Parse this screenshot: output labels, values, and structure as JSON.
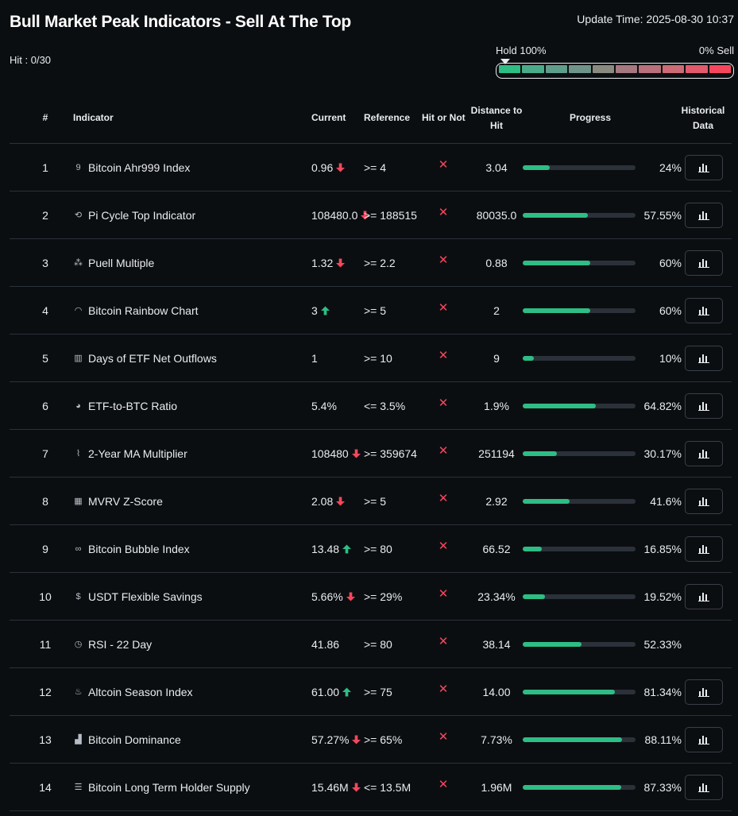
{
  "page": {
    "title": "Bull Market Peak Indicators - Sell At The Top",
    "update_time": "Update Time: 2025-08-30 10:37",
    "hit_count": "Hit : 0/30"
  },
  "gauge": {
    "hold_label": "Hold 100%",
    "sell_label": "0% Sell",
    "segment_colors": [
      "#2ebd85",
      "#4aab8a",
      "#5f9d8a",
      "#6f938a",
      "#8a8a80",
      "#a6787f",
      "#b9707a",
      "#cc6a76",
      "#e05a6c",
      "#f6465d"
    ]
  },
  "columns": {
    "num": "#",
    "indicator": "Indicator",
    "current": "Current",
    "reference": "Reference",
    "hit": "Hit or Not",
    "distance_1": "Distance to",
    "distance_2": "Hit",
    "progress": "Progress",
    "historical_1": "Historical",
    "historical_2": "Data"
  },
  "colors": {
    "up": "#2ebd85",
    "down": "#f6465d",
    "progress": "#2ebd85"
  },
  "rows": [
    {
      "num": "1",
      "name": "Bitcoin Ahr999 Index",
      "icon": "ahr999-icon",
      "icon_glyph": "9",
      "current": "0.96",
      "trend": "down",
      "reference": ">= 4",
      "hit": "✕",
      "distance": "3.04",
      "progress": 0.24,
      "pct": "24%",
      "has_hist": true
    },
    {
      "num": "2",
      "name": "Pi Cycle Top Indicator",
      "icon": "cycle-icon",
      "icon_glyph": "⟲",
      "current": "108480.0",
      "trend": "down",
      "reference": ">= 188515",
      "hit": "✕",
      "distance": "80035.0",
      "progress": 0.5755,
      "pct": "57.55%",
      "has_hist": true
    },
    {
      "num": "3",
      "name": "Puell Multiple",
      "icon": "sparkle-icon",
      "icon_glyph": "⁂",
      "current": "1.32",
      "trend": "down",
      "reference": ">= 2.2",
      "hit": "✕",
      "distance": "0.88",
      "progress": 0.6,
      "pct": "60%",
      "has_hist": true
    },
    {
      "num": "4",
      "name": "Bitcoin Rainbow Chart",
      "icon": "rainbow-icon",
      "icon_glyph": "◠",
      "current": "3",
      "trend": "up",
      "reference": ">= 5",
      "hit": "✕",
      "distance": "2",
      "progress": 0.6,
      "pct": "60%",
      "has_hist": true
    },
    {
      "num": "5",
      "name": "Days of ETF Net Outflows",
      "icon": "bar-chart-icon",
      "icon_glyph": "▥",
      "current": "1",
      "trend": "",
      "reference": ">= 10",
      "hit": "✕",
      "distance": "9",
      "progress": 0.1,
      "pct": "10%",
      "has_hist": true
    },
    {
      "num": "6",
      "name": "ETF-to-BTC Ratio",
      "icon": "pie-chart-icon",
      "icon_glyph": "◕",
      "current": "5.4%",
      "trend": "",
      "reference": "<= 3.5%",
      "hit": "✕",
      "distance": "1.9%",
      "progress": 0.6482,
      "pct": "64.82%",
      "has_hist": true
    },
    {
      "num": "7",
      "name": "2-Year MA Multiplier",
      "icon": "line-chart-icon",
      "icon_glyph": "⌇",
      "current": "108480",
      "trend": "down",
      "reference": ">= 359674",
      "hit": "✕",
      "distance": "251194",
      "progress": 0.3017,
      "pct": "30.17%",
      "has_hist": true
    },
    {
      "num": "8",
      "name": "MVRV Z-Score",
      "icon": "calculator-icon",
      "icon_glyph": "▦",
      "current": "2.08",
      "trend": "down",
      "reference": ">= 5",
      "hit": "✕",
      "distance": "2.92",
      "progress": 0.416,
      "pct": "41.6%",
      "has_hist": true
    },
    {
      "num": "9",
      "name": "Bitcoin Bubble Index",
      "icon": "bubble-icon",
      "icon_glyph": "∞",
      "current": "13.48",
      "trend": "up",
      "reference": ">= 80",
      "hit": "✕",
      "distance": "66.52",
      "progress": 0.1685,
      "pct": "16.85%",
      "has_hist": true
    },
    {
      "num": "10",
      "name": "USDT Flexible Savings",
      "icon": "dollar-icon",
      "icon_glyph": "$",
      "current": "5.66%",
      "trend": "down",
      "reference": ">= 29%",
      "hit": "✕",
      "distance": "23.34%",
      "progress": 0.1952,
      "pct": "19.52%",
      "has_hist": true
    },
    {
      "num": "11",
      "name": "RSI - 22 Day",
      "icon": "clock-icon",
      "icon_glyph": "◷",
      "current": "41.86",
      "trend": "",
      "reference": ">= 80",
      "hit": "✕",
      "distance": "38.14",
      "progress": 0.5233,
      "pct": "52.33%",
      "has_hist": false
    },
    {
      "num": "12",
      "name": "Altcoin Season Index",
      "icon": "fire-icon",
      "icon_glyph": "♨",
      "current": "61.00",
      "trend": "up",
      "reference": ">= 75",
      "hit": "✕",
      "distance": "14.00",
      "progress": 0.8134,
      "pct": "81.34%",
      "has_hist": true
    },
    {
      "num": "13",
      "name": "Bitcoin Dominance",
      "icon": "signal-icon",
      "icon_glyph": "▟",
      "current": "57.27%",
      "trend": "down",
      "reference": ">= 65%",
      "hit": "✕",
      "distance": "7.73%",
      "progress": 0.8811,
      "pct": "88.11%",
      "has_hist": true
    },
    {
      "num": "14",
      "name": "Bitcoin Long Term Holder Supply",
      "icon": "database-icon",
      "icon_glyph": "☰",
      "current": "15.46M",
      "trend": "down",
      "reference": "<= 13.5M",
      "hit": "✕",
      "distance": "1.96M",
      "progress": 0.8733,
      "pct": "87.33%",
      "has_hist": true
    }
  ]
}
